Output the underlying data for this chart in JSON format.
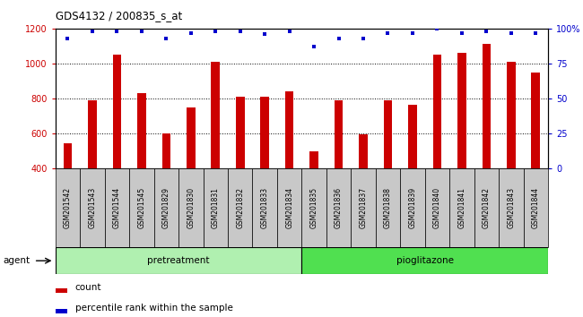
{
  "title": "GDS4132 / 200835_s_at",
  "categories": [
    "GSM201542",
    "GSM201543",
    "GSM201544",
    "GSM201545",
    "GSM201829",
    "GSM201830",
    "GSM201831",
    "GSM201832",
    "GSM201833",
    "GSM201834",
    "GSM201835",
    "GSM201836",
    "GSM201837",
    "GSM201838",
    "GSM201839",
    "GSM201840",
    "GSM201841",
    "GSM201842",
    "GSM201843",
    "GSM201844"
  ],
  "counts": [
    540,
    790,
    1050,
    830,
    600,
    745,
    1010,
    810,
    810,
    840,
    495,
    790,
    595,
    790,
    765,
    1050,
    1060,
    1110,
    1010,
    950
  ],
  "percentile": [
    93,
    98,
    98,
    98,
    93,
    97,
    98,
    98,
    96,
    98,
    87,
    93,
    93,
    97,
    97,
    100,
    97,
    98,
    97,
    97
  ],
  "bar_color": "#cc0000",
  "dot_color": "#0000cc",
  "ylim_left": [
    400,
    1200
  ],
  "ylim_right": [
    0,
    100
  ],
  "yticks_left": [
    400,
    600,
    800,
    1000,
    1200
  ],
  "yticks_right": [
    0,
    25,
    50,
    75,
    100
  ],
  "grid_values": [
    600,
    800,
    1000
  ],
  "plot_bg": "#ffffff",
  "tick_area_bg": "#c8c8c8",
  "pretreat_color": "#b0f0b0",
  "pioglit_color": "#50e050",
  "legend_count_label": "count",
  "legend_pct_label": "percentile rank within the sample",
  "n_pretreat": 10,
  "n_pioglit": 10
}
